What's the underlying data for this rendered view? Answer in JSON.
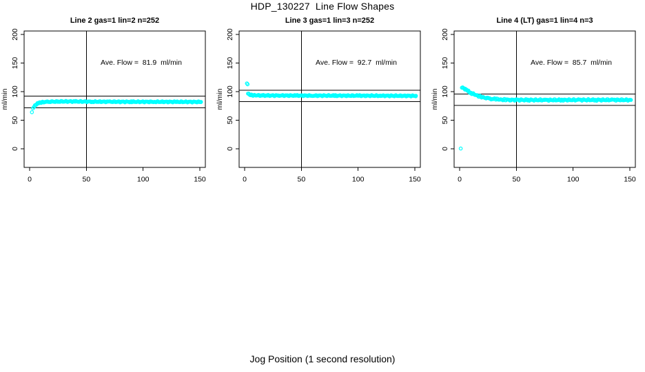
{
  "figure": {
    "title": "HDP_130227  Line Flow Shapes",
    "xlabel": "Jog Position (1 second resolution)"
  },
  "colors": {
    "points": "#00FFFF",
    "axis": "#000000",
    "ref_lines": "#000000",
    "text": "#000000",
    "background": "#FFFFFF"
  },
  "chart_data": [
    {
      "type": "scatter",
      "title": "Line 2 gas=1 lin=2 n=252",
      "line": 2,
      "gas": 1,
      "lin": 2,
      "n": 252,
      "annotation": "Ave. Flow =  81.9  ml/min",
      "ave_flow_ml_min": 81.9,
      "ylabel": "ml/min",
      "xticks": [
        0,
        50,
        100,
        150
      ],
      "yticks": [
        0,
        50,
        100,
        150,
        200
      ],
      "xlim": [
        -5,
        155
      ],
      "ylim": [
        -30,
        206
      ],
      "grid": false,
      "ref_line_x": 50,
      "ref_lines_y": [
        91.9,
        71.9
      ],
      "outliers": [
        [
          2,
          64
        ]
      ],
      "curve": [
        [
          3,
          70.5
        ],
        [
          4,
          74
        ],
        [
          5,
          76.5
        ],
        [
          6,
          78
        ],
        [
          7,
          79.2
        ],
        [
          8,
          80
        ],
        [
          9,
          80.6
        ],
        [
          10,
          81
        ],
        [
          12,
          81.6
        ],
        [
          15,
          82
        ],
        [
          20,
          82.3
        ],
        [
          25,
          82.6
        ],
        [
          32,
          82.8
        ],
        [
          40,
          82.7
        ],
        [
          55,
          82.4
        ],
        [
          70,
          82.3
        ],
        [
          90,
          82.2
        ],
        [
          110,
          82.2
        ],
        [
          130,
          82.1
        ],
        [
          151,
          82
        ]
      ],
      "band_halfwidth": 1.1
    },
    {
      "type": "scatter",
      "title": "Line 3 gas=1 lin=3 n=252",
      "line": 3,
      "gas": 1,
      "lin": 3,
      "n": 252,
      "annotation": "Ave. Flow =  92.7  ml/min",
      "ave_flow_ml_min": 92.7,
      "ylabel": "ml/min",
      "xticks": [
        0,
        50,
        100,
        150
      ],
      "yticks": [
        0,
        50,
        100,
        150,
        200
      ],
      "xlim": [
        -5,
        155
      ],
      "ylim": [
        -30,
        206
      ],
      "grid": false,
      "ref_line_x": 50,
      "ref_lines_y": [
        102.7,
        82.7
      ],
      "outliers": [
        [
          2,
          114.5
        ],
        [
          2.6,
          112.8
        ]
      ],
      "curve": [
        [
          3,
          97.5
        ],
        [
          3.5,
          96
        ],
        [
          4,
          95.3
        ],
        [
          5,
          94.4
        ],
        [
          6,
          94
        ],
        [
          8,
          93.6
        ],
        [
          10,
          93.5
        ],
        [
          15,
          93.3
        ],
        [
          20,
          93.2
        ],
        [
          30,
          93.2
        ],
        [
          45,
          93.1
        ],
        [
          60,
          93
        ],
        [
          80,
          93
        ],
        [
          100,
          92.9
        ],
        [
          120,
          92.8
        ],
        [
          151,
          92.6
        ]
      ],
      "band_halfwidth": 1.1
    },
    {
      "type": "scatter",
      "title": "Line 4 (LT) gas=1 lin=4 n=3",
      "line": 4,
      "line_note": "LT",
      "gas": 1,
      "lin": 4,
      "n": 3,
      "annotation": "Ave. Flow =  85.7  ml/min",
      "ave_flow_ml_min": 85.7,
      "ylabel": "ml/min",
      "xticks": [
        0,
        50,
        100,
        150
      ],
      "yticks": [
        0,
        50,
        100,
        150,
        200
      ],
      "xlim": [
        -5,
        155
      ],
      "ylim": [
        -30,
        206
      ],
      "grid": false,
      "ref_line_x": 50,
      "ref_lines_y": [
        95.7,
        75.7
      ],
      "outliers": [
        [
          1,
          0.5
        ]
      ],
      "curve": [
        [
          2,
          108
        ],
        [
          3,
          107.2
        ],
        [
          4,
          105.8
        ],
        [
          5,
          104.3
        ],
        [
          6,
          102.8
        ],
        [
          7,
          101.4
        ],
        [
          8,
          100.1
        ],
        [
          9,
          98.9
        ],
        [
          10,
          97.8
        ],
        [
          12,
          95.9
        ],
        [
          14,
          94.2
        ],
        [
          16,
          92.7
        ],
        [
          18,
          91.4
        ],
        [
          20,
          90.3
        ],
        [
          22,
          89.4
        ],
        [
          25,
          88.3
        ],
        [
          28,
          87.5
        ],
        [
          32,
          86.8
        ],
        [
          36,
          86.3
        ],
        [
          40,
          85.9
        ],
        [
          45,
          85.6
        ],
        [
          50,
          85.5
        ],
        [
          60,
          85.4
        ],
        [
          75,
          85.3
        ],
        [
          90,
          85.4
        ],
        [
          105,
          85.5
        ],
        [
          120,
          85.5
        ],
        [
          135,
          85.5
        ],
        [
          151,
          85.4
        ]
      ],
      "band_halfwidth": 1.5
    }
  ]
}
